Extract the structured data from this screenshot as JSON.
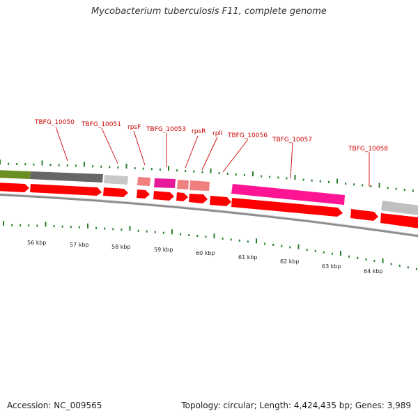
{
  "title": "Mycobacterium tuberculosis F11, complete genome",
  "footer": {
    "accession": "Accession: NC_009565",
    "summary": "Topology: circular; Length: 4,424,435 bp; Genes: 3,989"
  },
  "colors": {
    "tick": "#2a7d2a",
    "label": "#cc0000",
    "backbone": "#8c8c8c",
    "cds": "#ff0000"
  },
  "labels": [
    {
      "text": "TBFG_10050"
    },
    {
      "text": "TBFG_10051"
    },
    {
      "text": "rpsF"
    },
    {
      "text": "TBFG_10053"
    },
    {
      "text": "rpsR"
    },
    {
      "text": "rplI"
    },
    {
      "text": "TBFG_10056"
    },
    {
      "text": "TBFG_10057"
    },
    {
      "text": "TBFG_10058"
    }
  ],
  "scale": [
    {
      "text": "56 kbp"
    },
    {
      "text": "57 kbp"
    },
    {
      "text": "58 kbp"
    },
    {
      "text": "59 kbp"
    },
    {
      "text": "60 kbp"
    },
    {
      "text": "61 kbp"
    },
    {
      "text": "62 kbp"
    },
    {
      "text": "63 kbp"
    },
    {
      "text": "64 kbp"
    }
  ]
}
